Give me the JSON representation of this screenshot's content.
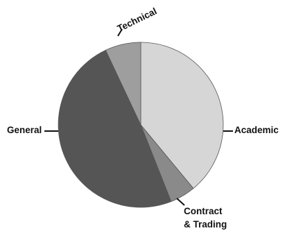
{
  "chart_data": {
    "type": "pie",
    "title": "",
    "start": "12 o'clock",
    "direction": "clockwise",
    "slices": [
      {
        "label": "Academic",
        "value": 39.0,
        "color": "#d6d6d6"
      },
      {
        "label": "Contract",
        "label2": "& Trading",
        "value": 5.0,
        "color": "#8a8a8a"
      },
      {
        "label": "General",
        "value": 49.0,
        "color": "#555555"
      },
      {
        "label": "Technical",
        "value": 7.0,
        "color": "#9e9e9e"
      }
    ]
  }
}
